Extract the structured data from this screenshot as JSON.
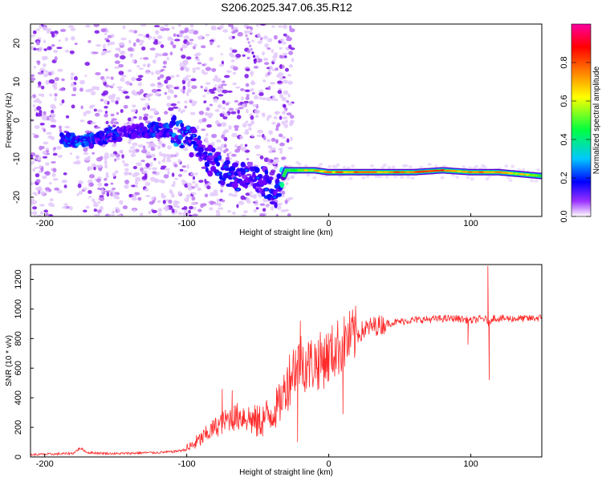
{
  "title": "S206.2025.347.06.35.R12",
  "chart_data": [
    {
      "type": "heatmap",
      "name": "spectrogram",
      "xlabel": "Height of straight line (km)",
      "ylabel": "Frequency (Hz)",
      "xlim": [
        -210,
        150
      ],
      "ylim": [
        -25,
        25
      ],
      "xticks": [
        -200,
        -100,
        0,
        100
      ],
      "yticks": [
        -20,
        -10,
        0,
        10,
        20
      ],
      "colorbar": {
        "label": "Normalized spectral amplitude",
        "range": [
          0,
          1
        ],
        "ticks": [
          "0.0",
          "0.2",
          "0.4",
          "0.6",
          "0.8"
        ],
        "colors": [
          "#ffffff",
          "#7b00ff",
          "#0000ff",
          "#00ffff",
          "#00ff00",
          "#ffff00",
          "#ff8000",
          "#ff0000",
          "#ff00a0"
        ]
      },
      "ridge": {
        "x": [
          -185,
          -175,
          -165,
          -155,
          -145,
          -135,
          -125,
          -115,
          -105,
          -95,
          -85,
          -75,
          -65,
          -55,
          -45,
          -38,
          -30,
          -20,
          -10,
          0,
          20,
          40,
          60,
          80,
          100,
          120,
          150
        ],
        "freq": [
          -5,
          -5.5,
          -5,
          -4,
          -3.5,
          -3,
          -2.5,
          -2.5,
          -3,
          -6,
          -10,
          -13,
          -14,
          -14,
          -16,
          -20,
          -13,
          -13,
          -13,
          -13.5,
          -13.5,
          -13.5,
          -13.5,
          -13,
          -13.5,
          -13.5,
          -14.5
        ],
        "amplitude": [
          0.25,
          0.3,
          0.25,
          0.2,
          0.2,
          0.22,
          0.25,
          0.25,
          0.3,
          0.25,
          0.2,
          0.25,
          0.2,
          0.2,
          0.25,
          0.2,
          0.5,
          0.6,
          0.65,
          0.7,
          0.75,
          0.75,
          0.8,
          0.8,
          0.7,
          0.75,
          0.5
        ]
      }
    },
    {
      "type": "line",
      "name": "snr",
      "xlabel": "Height of straight line (km)",
      "ylabel": "SNR (10 * v/v)",
      "xlim": [
        -210,
        150
      ],
      "ylim": [
        0,
        1300
      ],
      "xticks": [
        -200,
        -100,
        0,
        100
      ],
      "yticks": [
        0,
        200,
        400,
        600,
        800,
        1000,
        1200
      ],
      "color": "#ff2a2a",
      "series": {
        "x": [
          -210,
          -200,
          -190,
          -180,
          -175,
          -170,
          -160,
          -150,
          -140,
          -130,
          -120,
          -110,
          -100,
          -90,
          -80,
          -70,
          -60,
          -50,
          -40,
          -35,
          -30,
          -25,
          -20,
          -15,
          -10,
          -5,
          0,
          5,
          10,
          15,
          20,
          25,
          30,
          40,
          50,
          60,
          70,
          80,
          90,
          95,
          100,
          105,
          110,
          113,
          115,
          120,
          130,
          140,
          150
        ],
        "y": [
          15,
          18,
          20,
          25,
          60,
          30,
          25,
          22,
          25,
          28,
          30,
          35,
          50,
          120,
          200,
          260,
          280,
          230,
          300,
          350,
          480,
          600,
          660,
          620,
          640,
          650,
          680,
          730,
          760,
          800,
          830,
          860,
          880,
          900,
          915,
          925,
          930,
          935,
          935,
          930,
          920,
          930,
          935,
          900,
          940,
          935,
          935,
          935,
          940
        ],
        "spikes": [
          {
            "x": -75,
            "y": 460
          },
          {
            "x": -68,
            "y": 450
          },
          {
            "x": -38,
            "y": 340
          },
          {
            "x": -20,
            "y": 920
          },
          {
            "x": -22,
            "y": 100
          },
          {
            "x": -3,
            "y": 800
          },
          {
            "x": 10,
            "y": 290
          },
          {
            "x": 98,
            "y": 760
          },
          {
            "x": 112,
            "y": 1290
          },
          {
            "x": 113,
            "y": 520
          }
        ]
      }
    }
  ]
}
